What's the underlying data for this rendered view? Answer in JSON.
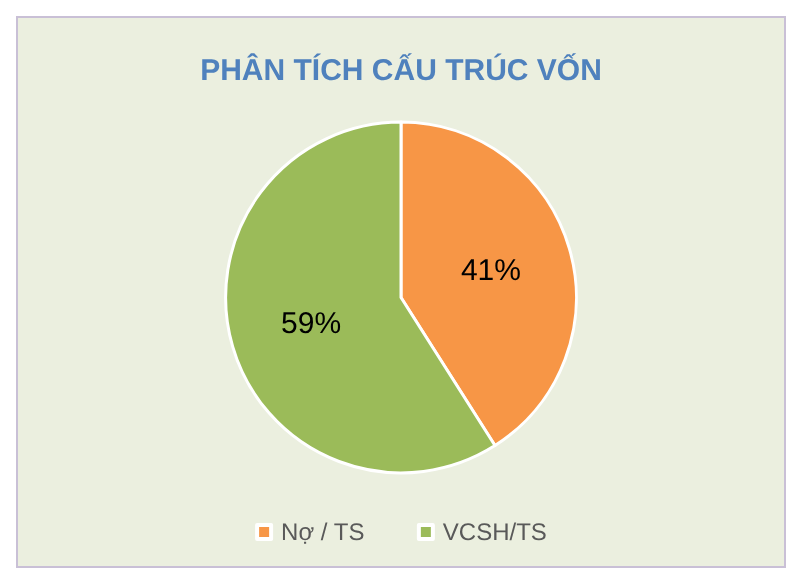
{
  "chart_data": {
    "type": "pie",
    "title": "PHÂN TÍCH CẤU TRÚC VỐN",
    "categories": [
      "Nợ / TS",
      "VCSH/TS"
    ],
    "values": [
      41,
      59
    ],
    "colors": [
      "#f79646",
      "#9bbb59"
    ],
    "value_labels": [
      "41%",
      "59%"
    ],
    "legend": "bottom"
  }
}
